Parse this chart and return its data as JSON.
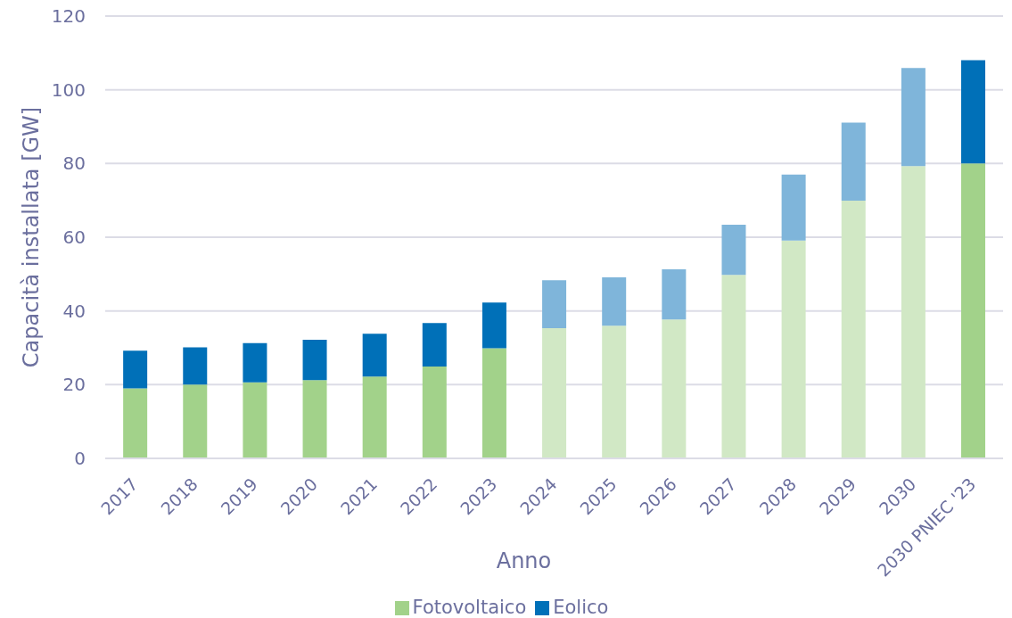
{
  "chart_data": {
    "type": "bar",
    "stacked": true,
    "xlabel": "Anno",
    "ylabel": "Capacità installata [GW]",
    "categories": [
      "2017",
      "2018",
      "2019",
      "2020",
      "2021",
      "2022",
      "2023",
      "2024",
      "2025",
      "2026",
      "2027",
      "2028",
      "2029",
      "2030",
      "2030 PNIEC '23"
    ],
    "series": [
      {
        "name": "Fotovoltaico",
        "color": "#a2d28a",
        "colors": [
          "#a2d28a",
          "#a2d28a",
          "#a2d28a",
          "#a2d28a",
          "#a2d28a",
          "#a2d28a",
          "#a2d28a",
          "#d1e8c5",
          "#d1e8c5",
          "#d1e8c5",
          "#d1e8c5",
          "#d1e8c5",
          "#d1e8c5",
          "#d1e8c5",
          "#a2d28a"
        ],
        "values": [
          19.0,
          20.0,
          20.6,
          21.2,
          22.2,
          24.9,
          29.9,
          35.3,
          36.0,
          37.7,
          49.8,
          59.1,
          69.9,
          79.3,
          80.0
        ]
      },
      {
        "name": "Eolico",
        "color": "#0070b8",
        "colors": [
          "#0070b8",
          "#0070b8",
          "#0070b8",
          "#0070b8",
          "#0070b8",
          "#0070b8",
          "#0070b8",
          "#7fb5da",
          "#7fb5da",
          "#7fb5da",
          "#7fb5da",
          "#7fb5da",
          "#7fb5da",
          "#7fb5da",
          "#0070b8"
        ],
        "values": [
          10.2,
          10.1,
          10.7,
          11.0,
          11.6,
          11.8,
          12.4,
          13.0,
          13.1,
          13.6,
          13.6,
          17.9,
          21.2,
          26.6,
          28.0
        ]
      }
    ],
    "ylim": [
      0,
      120
    ],
    "yticks": [
      0,
      20,
      40,
      60,
      80,
      100,
      120
    ],
    "grid": "y",
    "legend": "bottom"
  }
}
